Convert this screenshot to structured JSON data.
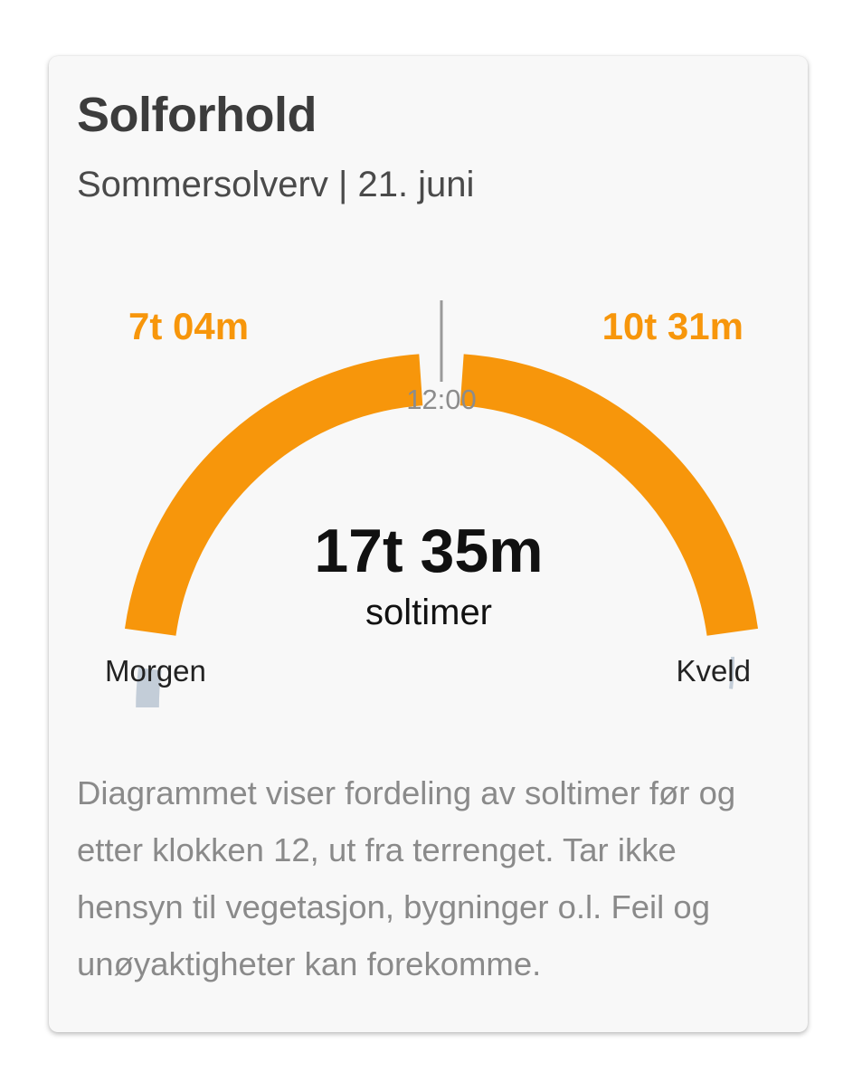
{
  "card": {
    "title": "Solforhold",
    "subtitle": "Sommersolverv | 21. juni",
    "description": "Diagrammet viser fordeling av soltimer før og etter klokken 12, ut fra terrenget. Tar ikke hensyn til vegetasjon, bygninger o.l. Feil og unøyaktigheter kan forekomme."
  },
  "chart_data": {
    "type": "gauge",
    "morning": {
      "label": "Morgen",
      "value_text": "7t 04m",
      "hours": 7.07
    },
    "evening": {
      "label": "Kveld",
      "value_text": "10t 31m",
      "hours": 10.52
    },
    "noon_label": "12:00",
    "total_value": "17t 35m",
    "total_label": "soltimer",
    "colors": {
      "sun": "#f7960b",
      "shade": "#c3cdd8",
      "noon_marker": "#9a9a9a",
      "value_text": "#f7960b",
      "total_text": "#111111",
      "label_text": "#222222"
    }
  }
}
